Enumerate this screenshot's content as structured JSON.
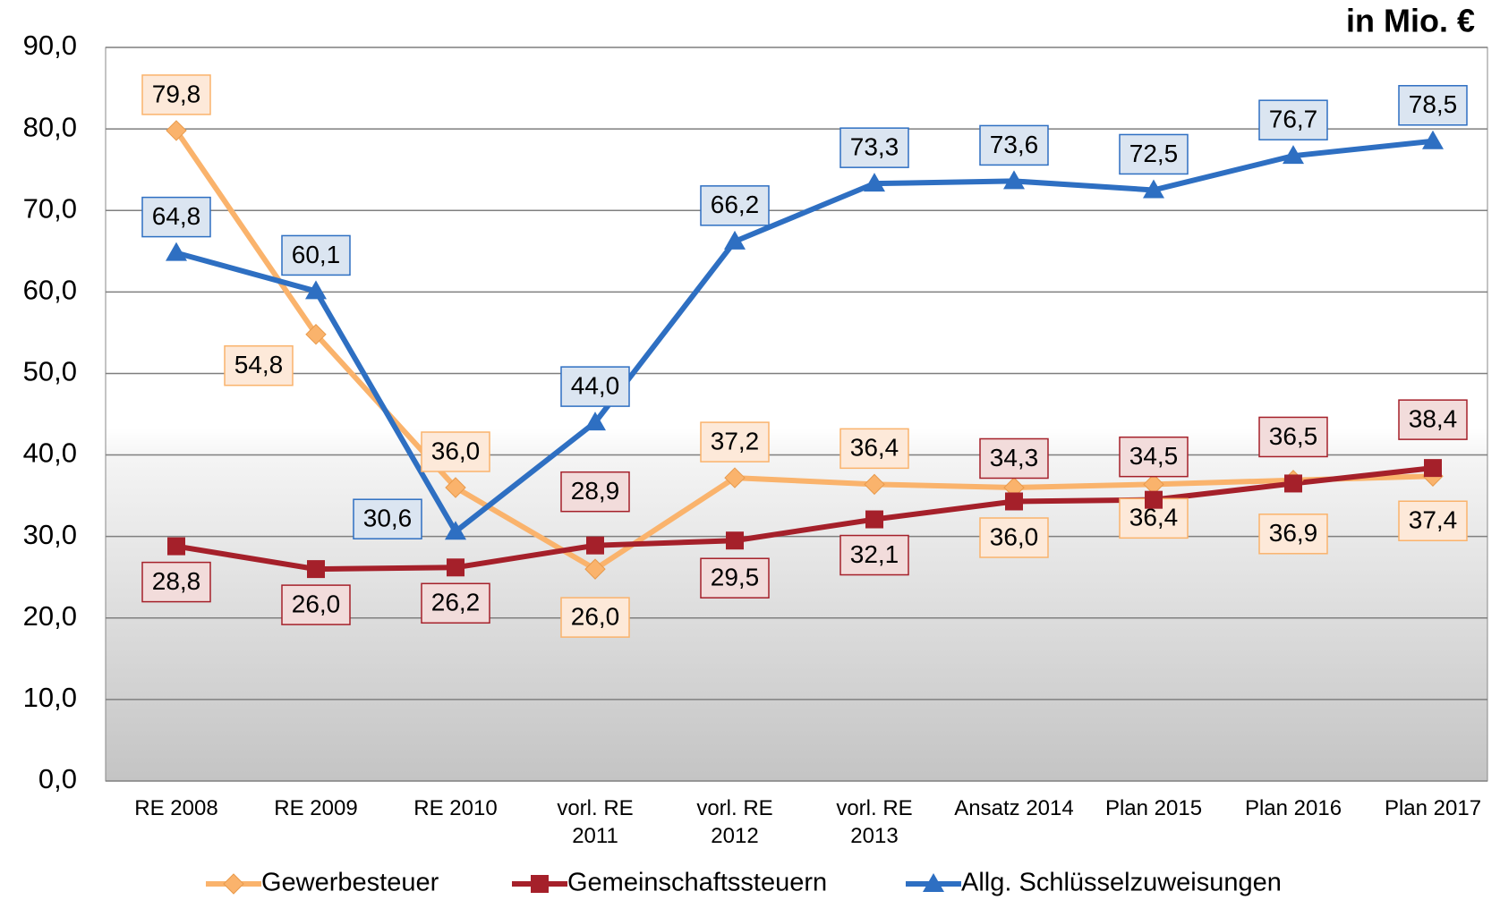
{
  "chart_data": {
    "type": "line",
    "annotation": "in Mio. €",
    "categories": [
      "RE 2008",
      "RE 2009",
      "RE 2010",
      "vorl. RE\n2011",
      "vorl. RE\n2012",
      "vorl. RE\n2013",
      "Ansatz 2014",
      "Plan 2015",
      "Plan 2016",
      "Plan 2017"
    ],
    "series": [
      {
        "name": "Gewerbesteuer",
        "color": "#fab36c",
        "marker": "diamond",
        "values": [
          79.8,
          54.8,
          36.0,
          26.0,
          37.2,
          36.4,
          36.0,
          36.4,
          36.9,
          37.4
        ],
        "value_labels": [
          "79,8",
          "54,8",
          "36,0",
          "26,0",
          "37,2",
          "36,4",
          "36,0",
          "36,4",
          "36,9",
          "37,4"
        ]
      },
      {
        "name": "Gemeinschaftssteuern",
        "color": "#a5202a",
        "marker": "square",
        "values": [
          28.8,
          26.0,
          26.2,
          28.9,
          29.5,
          32.1,
          34.3,
          34.5,
          36.5,
          38.4
        ],
        "value_labels": [
          "28,8",
          "26,0",
          "26,2",
          "28,9",
          "29,5",
          "32,1",
          "34,3",
          "34,5",
          "36,5",
          "38,4"
        ]
      },
      {
        "name": "Allg. Schlüsselzuweisungen",
        "color": "#2e6fc2",
        "marker": "triangle",
        "values": [
          64.8,
          60.1,
          30.6,
          44.0,
          66.2,
          73.3,
          73.6,
          72.5,
          76.7,
          78.5
        ],
        "value_labels": [
          "64,8",
          "60,1",
          "30,6",
          "44,0",
          "66,2",
          "73,3",
          "73,6",
          "72,5",
          "76,7",
          "78,5"
        ]
      }
    ],
    "ylim": [
      0,
      90
    ],
    "yticks": [
      {
        "value": 0,
        "label": "0,0"
      },
      {
        "value": 10,
        "label": "10,0"
      },
      {
        "value": 20,
        "label": "20,0"
      },
      {
        "value": 30,
        "label": "30,0"
      },
      {
        "value": 40,
        "label": "40,0"
      },
      {
        "value": 50,
        "label": "50,0"
      },
      {
        "value": 60,
        "label": "60,0"
      },
      {
        "value": 70,
        "label": "70,0"
      },
      {
        "value": 80,
        "label": "80,0"
      },
      {
        "value": 90,
        "label": "90,0"
      }
    ],
    "grid": true,
    "legend": "bottom"
  }
}
